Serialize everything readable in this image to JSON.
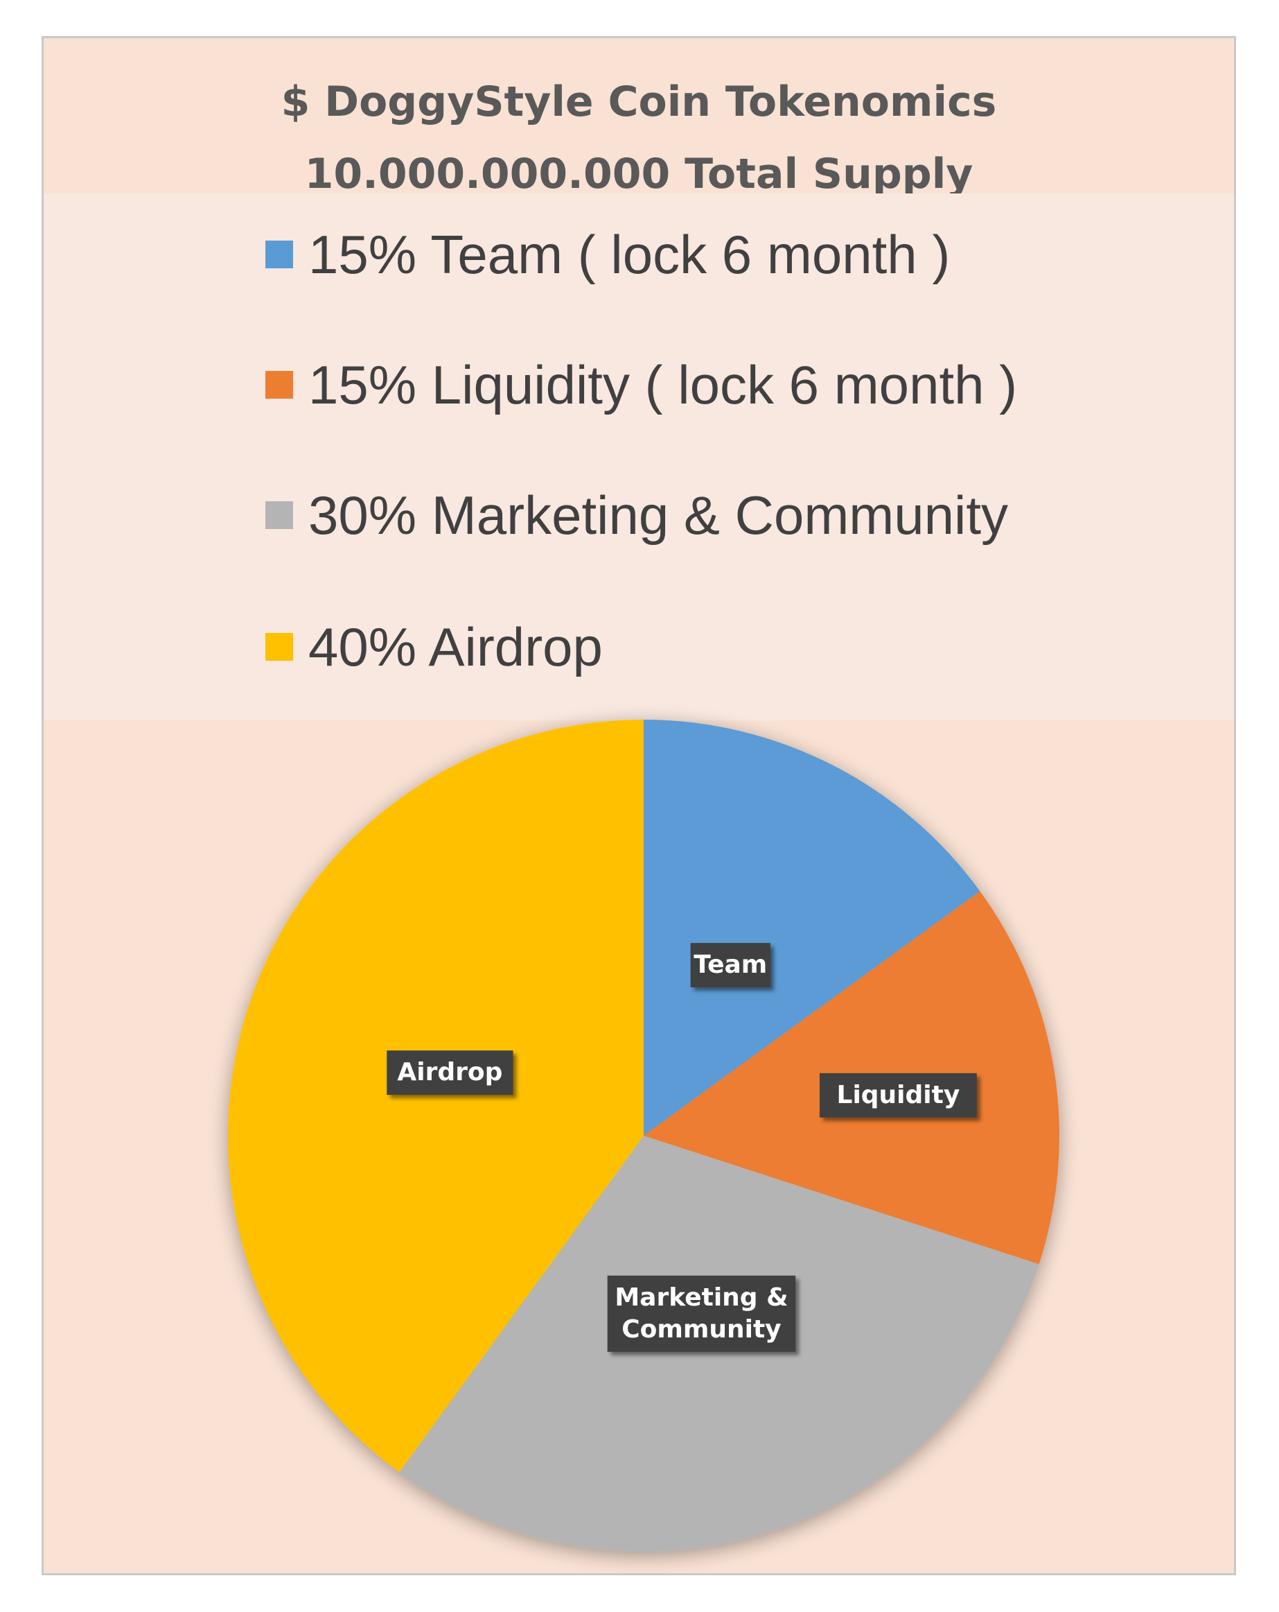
{
  "chart_data": {
    "type": "pie",
    "title": [
      "$ DoggyStyle Coin Tokenomics",
      "10.000.000.000 Total Supply"
    ],
    "legend": {
      "placement": "top",
      "entries": [
        {
          "label": "15% Team ( lock 6 month )",
          "color": "#5b9bd5"
        },
        {
          "label": "15% Liquidity ( lock 6 month )",
          "color": "#ed7d31"
        },
        {
          "label": "30% Marketing & Community",
          "color": "#b4b4b4"
        },
        {
          "label": "40% Airdrop",
          "color": "#ffc000"
        }
      ]
    },
    "slices": [
      {
        "name": "Team",
        "value": 15,
        "color": "#5b9bd5",
        "label_lines": [
          "Team"
        ]
      },
      {
        "name": "Liquidity",
        "value": 15,
        "color": "#ed7d31",
        "label_lines": [
          "Liquidity"
        ]
      },
      {
        "name": "Marketing & Community",
        "value": 30,
        "color": "#b4b4b4",
        "label_lines": [
          "Marketing &",
          "Community"
        ]
      },
      {
        "name": "Airdrop",
        "value": 40,
        "color": "#ffc000",
        "label_lines": [
          "Airdrop"
        ]
      }
    ]
  }
}
